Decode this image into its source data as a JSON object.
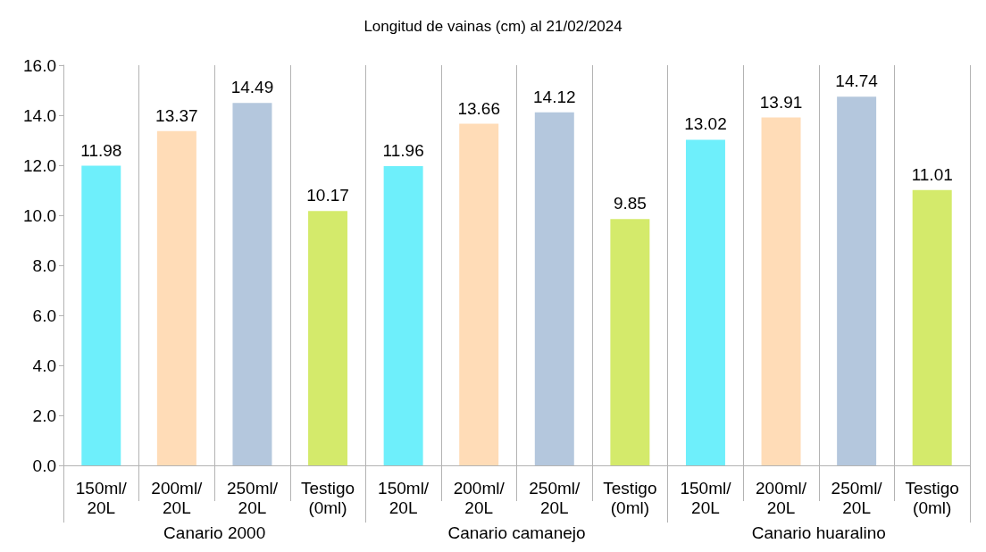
{
  "chart_data": {
    "type": "bar",
    "title": "Longitud de vainas (cm) al 21/02/2024",
    "categories": [
      "150ml/\n20L",
      "200ml/\n20L",
      "250ml/\n20L",
      "Testigo\n(0ml)",
      "150ml/\n20L",
      "200ml/\n20L",
      "250ml/\n20L",
      "Testigo\n(0ml)",
      "150ml/\n20L",
      "200ml/\n20L",
      "250ml/\n20L",
      "Testigo\n(0ml)"
    ],
    "values": [
      11.98,
      13.37,
      14.49,
      10.17,
      11.96,
      13.66,
      14.12,
      9.85,
      13.02,
      13.91,
      14.74,
      11.01
    ],
    "colors": [
      "#6eeffb",
      "#ffdcb7",
      "#b4c7dd",
      "#d4ea6b",
      "#6eeffb",
      "#ffdcb7",
      "#b4c7dd",
      "#d4ea6b",
      "#6eeffb",
      "#ffdcb7",
      "#b4c7dd",
      "#d4ea6b"
    ],
    "data_labels": true,
    "ylim": [
      0,
      16
    ],
    "yticks": [
      {
        "value": 0,
        "label": "0.0"
      },
      {
        "value": 2,
        "label": "2.0"
      },
      {
        "value": 4,
        "label": "4.0"
      },
      {
        "value": 6,
        "label": "6.0"
      },
      {
        "value": 8,
        "label": "8.0"
      },
      {
        "value": 10,
        "label": "10.0"
      },
      {
        "value": 12,
        "label": "12.0"
      },
      {
        "value": 14,
        "label": "14.0"
      },
      {
        "value": 16,
        "label": "16.0"
      }
    ],
    "grid": "x",
    "annotations": [
      "Canario 2000",
      "Canario camanejo",
      "Canario huaralino"
    ]
  }
}
